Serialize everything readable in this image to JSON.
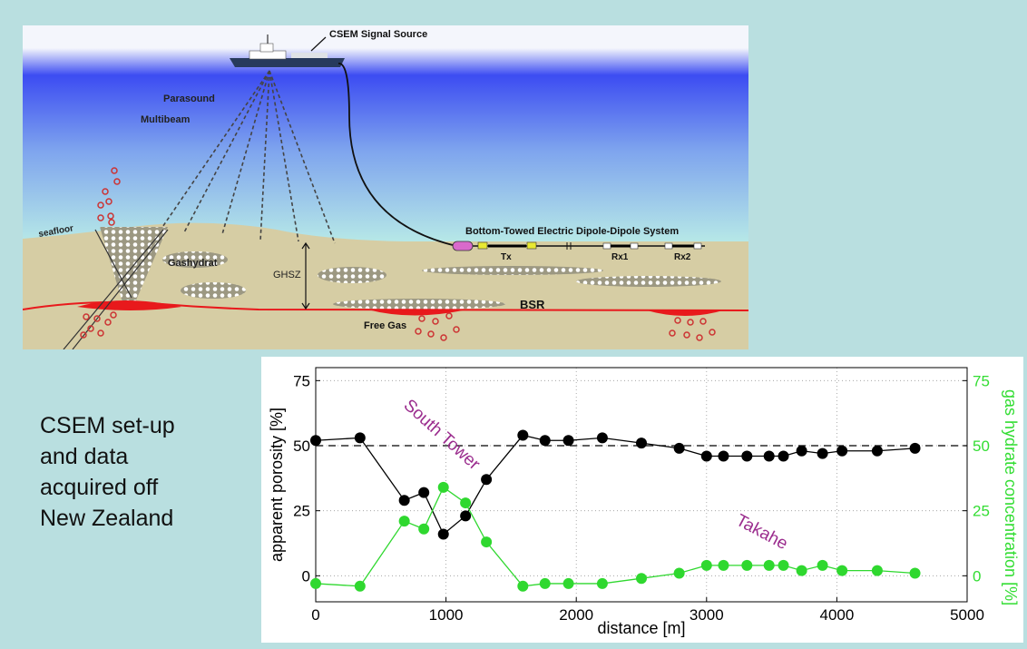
{
  "diagram": {
    "labels": {
      "signal_source": "CSEM Signal Source",
      "parasound": "Parasound",
      "multibeam": "Multibeam",
      "seafloor": "seafloor",
      "gashydrat": "Gashydrat",
      "ghsz": "GHSZ",
      "bsr": "BSR",
      "free_gas": "Free Gas",
      "towed_system": "Bottom-Towed Electric Dipole-Dipole System",
      "tx": "Tx",
      "rx1": "Rx1",
      "rx2": "Rx2"
    },
    "colors": {
      "sea_top": "#f4f6fc",
      "sea_blue": "#3c4cf2",
      "sea_bottom": "#bdf0e6",
      "sediment": "#d6cda4",
      "free_gas": "#e8191c",
      "bubble": "#cc3333",
      "transmitter": "#e8e832",
      "ship_hull": "#273a5c"
    }
  },
  "caption": {
    "lines": [
      "CSEM set-up",
      "and data",
      "acquired off",
      "New Zealand"
    ]
  },
  "chart_data": {
    "type": "line",
    "xlabel": "distance [m]",
    "ylabel_left": "apparent porosity [%]",
    "ylabel_right": "gas hydrate concentration [%]",
    "xlim": [
      0,
      5000
    ],
    "ylim_left": [
      -10,
      80
    ],
    "ylim_right": [
      -10,
      80
    ],
    "x_ticks": [
      "0",
      "1000",
      "2000",
      "3000",
      "4000",
      "5000"
    ],
    "y_ticks_left": [
      "0",
      "25",
      "50",
      "75"
    ],
    "y_ticks_right": [
      "0",
      "25",
      "50",
      "75"
    ],
    "grid": true,
    "reference_line": 50,
    "annotations": [
      "South Tower",
      "Takahe"
    ],
    "series": [
      {
        "axis": "left",
        "color": "#000000",
        "x": [
          0,
          340,
          680,
          830,
          980,
          1150,
          1310,
          1590,
          1760,
          1940,
          2200,
          2500,
          2790,
          3000,
          3130,
          3310,
          3480,
          3590,
          3730,
          3890,
          4040,
          4310,
          4600
        ],
        "y": [
          52,
          53,
          29,
          32,
          16,
          23,
          37,
          54,
          52,
          52,
          53,
          51,
          49,
          46,
          46,
          46,
          46,
          46,
          48,
          47,
          48,
          48,
          49
        ]
      },
      {
        "axis": "right",
        "color": "#2fd82f",
        "x": [
          0,
          340,
          680,
          830,
          980,
          1150,
          1310,
          1590,
          1760,
          1940,
          2200,
          2500,
          2790,
          3000,
          3130,
          3310,
          3480,
          3590,
          3730,
          3890,
          4040,
          4310,
          4600
        ],
        "y": [
          -3,
          -4,
          21,
          18,
          34,
          28,
          13,
          -4,
          -3,
          -3,
          -3,
          -1,
          1,
          4,
          4,
          4,
          4,
          4,
          2,
          4,
          2,
          2,
          1
        ]
      }
    ]
  }
}
